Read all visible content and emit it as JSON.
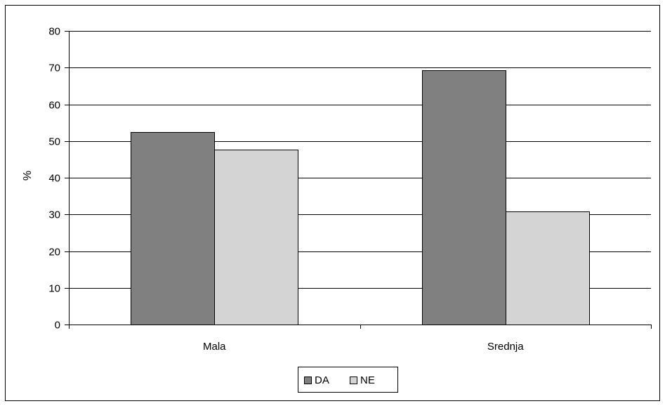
{
  "chart_data": {
    "type": "bar",
    "categories": [
      "Mala",
      "Srednja"
    ],
    "series": [
      {
        "name": "DA",
        "values": [
          52.4,
          69.2
        ],
        "color": "#808080"
      },
      {
        "name": "NE",
        "values": [
          47.6,
          30.8
        ],
        "color": "#d4d4d4"
      }
    ],
    "title": "",
    "xlabel": "",
    "ylabel": "%",
    "ylim": [
      0,
      80
    ],
    "yticks": [
      0,
      10,
      20,
      30,
      40,
      50,
      60,
      70,
      80
    ],
    "grid": true,
    "legend_position": "bottom"
  }
}
